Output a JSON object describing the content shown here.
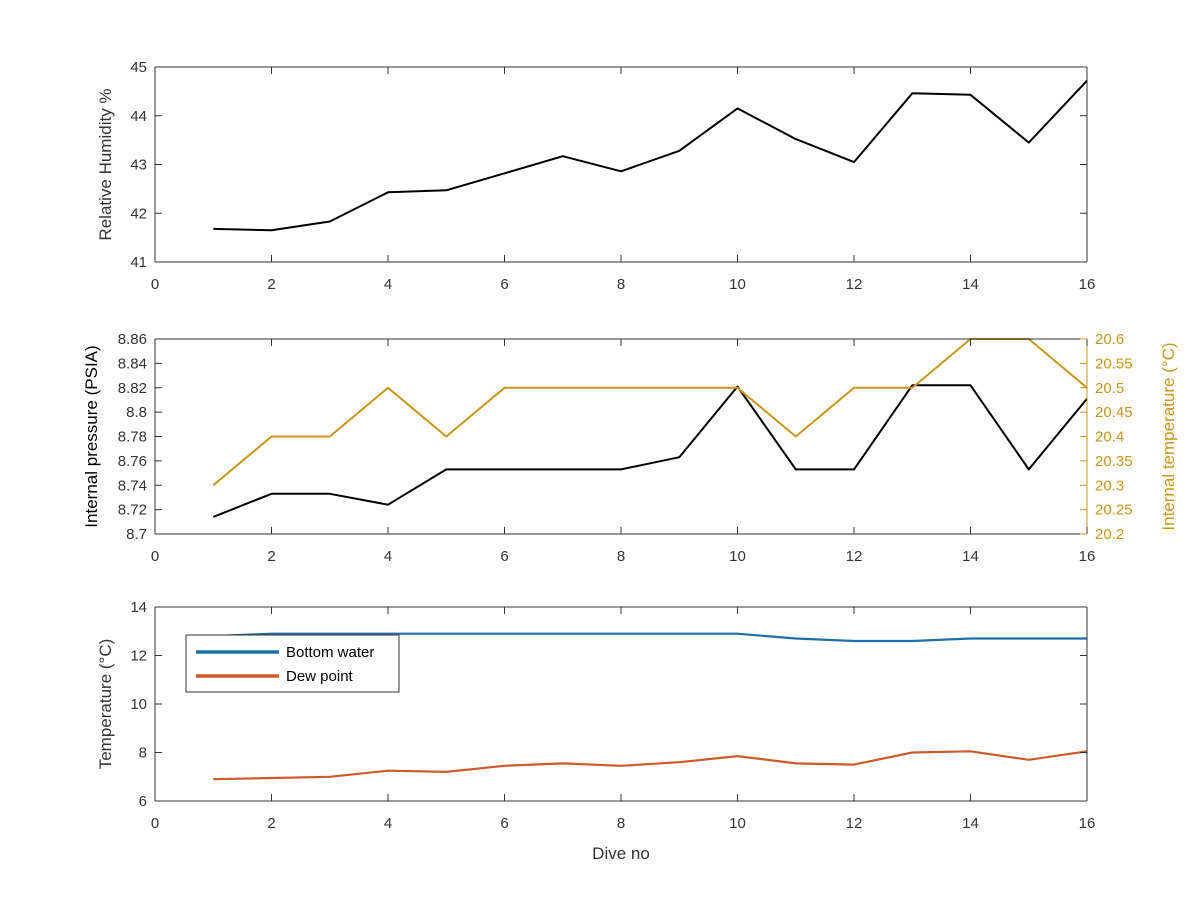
{
  "chart_data": [
    {
      "type": "line",
      "ylabel": "Relative Humidity %",
      "xlabel": "",
      "xlim": [
        0,
        16
      ],
      "ylim": [
        41,
        45
      ],
      "x_ticks": [
        "0",
        "2",
        "4",
        "6",
        "8",
        "10",
        "12",
        "14",
        "16"
      ],
      "y_ticks": [
        "41",
        "42",
        "43",
        "44",
        "45"
      ],
      "grid": false,
      "series": [
        {
          "color": "#000000",
          "x": [
            1,
            2,
            3,
            4,
            5,
            6,
            7,
            8,
            9,
            10,
            11,
            12,
            13,
            14,
            15,
            16
          ],
          "values": [
            41.68,
            41.65,
            41.83,
            42.43,
            42.47,
            42.82,
            43.17,
            42.86,
            43.28,
            44.15,
            43.52,
            43.05,
            44.46,
            44.43,
            43.45,
            44.72
          ]
        }
      ]
    },
    {
      "type": "line",
      "ylabel": "Internal pressure (PSIA)",
      "ylabel_right": "Internal temperature (°C)",
      "xlabel": "",
      "xlim": [
        0,
        16
      ],
      "ylim": [
        8.7,
        8.86
      ],
      "ylim_right": [
        20.2,
        20.6
      ],
      "x_ticks": [
        "0",
        "2",
        "4",
        "6",
        "8",
        "10",
        "12",
        "14",
        "16"
      ],
      "y_ticks": [
        "8.7",
        "8.72",
        "8.74",
        "8.76",
        "8.78",
        "8.8",
        "8.82",
        "8.84",
        "8.86"
      ],
      "y_ticks_right": [
        "20.2",
        "20.25",
        "20.3",
        "20.35",
        "20.4",
        "20.45",
        "20.5",
        "20.55",
        "20.6"
      ],
      "grid": false,
      "series": [
        {
          "axis": "left",
          "color": "#000000",
          "x": [
            1,
            2,
            3,
            4,
            5,
            6,
            7,
            8,
            9,
            10,
            11,
            12,
            13,
            14,
            15,
            16
          ],
          "values": [
            8.714,
            8.733,
            8.733,
            8.724,
            8.753,
            8.753,
            8.753,
            8.753,
            8.763,
            8.821,
            8.753,
            8.753,
            8.822,
            8.822,
            8.753,
            8.811
          ]
        },
        {
          "axis": "right",
          "color": "#c8961e",
          "x": [
            1,
            2,
            3,
            4,
            5,
            6,
            7,
            8,
            9,
            10,
            11,
            12,
            13,
            14,
            15,
            16
          ],
          "values": [
            20.3,
            20.4,
            20.4,
            20.5,
            20.4,
            20.5,
            20.5,
            20.5,
            20.5,
            20.5,
            20.4,
            20.5,
            20.5,
            20.6,
            20.6,
            20.5
          ]
        }
      ]
    },
    {
      "type": "line",
      "ylabel": "Temperature (°C)",
      "xlabel": "Dive no",
      "xlim": [
        0,
        16
      ],
      "ylim": [
        6,
        14
      ],
      "x_ticks": [
        "0",
        "2",
        "4",
        "6",
        "8",
        "10",
        "12",
        "14",
        "16"
      ],
      "y_ticks": [
        "6",
        "8",
        "10",
        "12",
        "14"
      ],
      "grid": false,
      "legend": "top-left",
      "series": [
        {
          "name": "Bottom water",
          "color": "#1f6faa",
          "x": [
            1,
            2,
            3,
            4,
            5,
            6,
            7,
            8,
            9,
            10,
            11,
            12,
            13,
            14,
            15,
            16
          ],
          "values": [
            12.8,
            12.9,
            12.9,
            12.9,
            12.9,
            12.9,
            12.9,
            12.9,
            12.9,
            12.9,
            12.7,
            12.6,
            12.6,
            12.7,
            12.7,
            12.7
          ]
        },
        {
          "name": "Dew point",
          "color": "#cc5a2a",
          "x": [
            1,
            2,
            3,
            4,
            5,
            6,
            7,
            8,
            9,
            10,
            11,
            12,
            13,
            14,
            15,
            16
          ],
          "values": [
            6.9,
            6.95,
            7.0,
            7.25,
            7.2,
            7.45,
            7.55,
            7.45,
            7.6,
            7.85,
            7.55,
            7.5,
            8.0,
            8.05,
            7.7,
            8.05
          ]
        }
      ]
    }
  ]
}
